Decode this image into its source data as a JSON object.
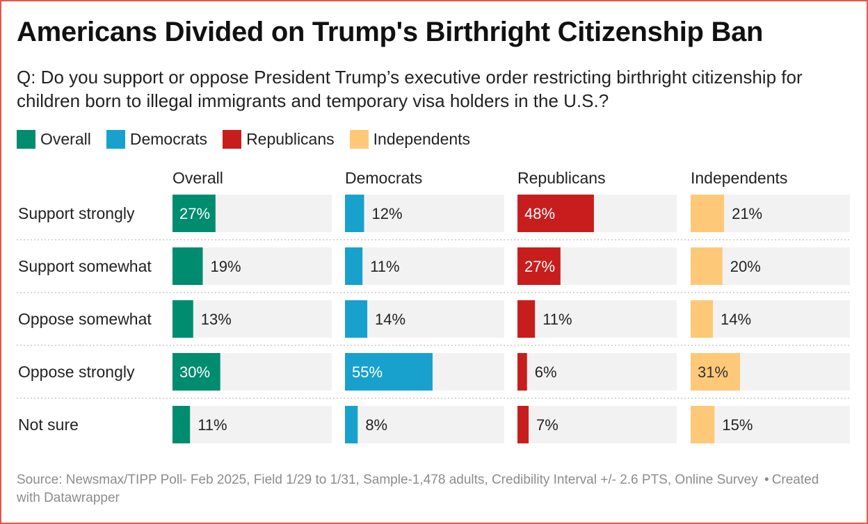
{
  "title": "Americans Divided on Trump's Birthright Citizenship Ban",
  "subtitle": "Q: Do you support or oppose President Trump’s executive order restricting birthright citizenship for children born to illegal immigrants and temporary visa holders in the U.S.?",
  "legend": [
    {
      "label": "Overall",
      "color": "#008c6f"
    },
    {
      "label": "Democrats",
      "color": "#18a1cd"
    },
    {
      "label": "Republicans",
      "color": "#c71e1d"
    },
    {
      "label": "Independents",
      "color": "#fdc979"
    }
  ],
  "chart_data": {
    "type": "bar",
    "orientation": "horizontal",
    "layout": "small-multiples",
    "title": "Americans Divided on Trump's Birthright Citizenship Ban",
    "value_suffix": "%",
    "xlim": [
      0,
      100
    ],
    "categories": [
      "Support strongly",
      "Support somewhat",
      "Oppose somewhat",
      "Oppose strongly",
      "Not sure"
    ],
    "series": [
      {
        "name": "Overall",
        "color": "#008c6f",
        "label_color_inside": "#ffffff",
        "values": [
          27,
          19,
          13,
          30,
          11
        ]
      },
      {
        "name": "Democrats",
        "color": "#18a1cd",
        "label_color_inside": "#ffffff",
        "values": [
          12,
          11,
          14,
          55,
          8
        ]
      },
      {
        "name": "Republicans",
        "color": "#c71e1d",
        "label_color_inside": "#ffffff",
        "values": [
          48,
          27,
          11,
          6,
          7
        ]
      },
      {
        "name": "Independents",
        "color": "#fdc979",
        "label_color_inside": "#333333",
        "values": [
          21,
          20,
          14,
          31,
          15
        ]
      }
    ]
  },
  "footer": {
    "source": "Source: Newsmax/TIPP Poll- Feb 2025, Field 1/29 to 1/31, Sample-1,478 adults, Credibility Interval +/- 2.6 PTS, Online Survey",
    "separator": "•",
    "credit": "Created with Datawrapper"
  }
}
